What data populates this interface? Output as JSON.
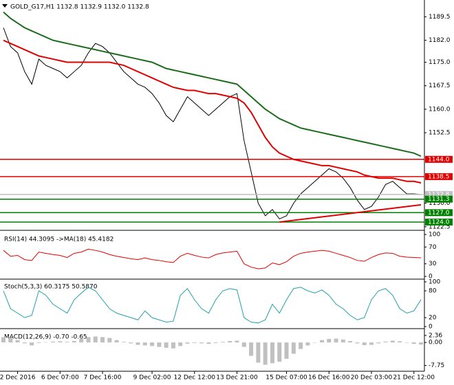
{
  "chart_data": [
    {
      "type": "line",
      "title": "GOLD_G17,H1  1132.8 1132.9 1132.0 1132.8",
      "categories": [
        null,
        null,
        "2 Dec 2016",
        null,
        null,
        null,
        null,
        null,
        "6 Dec 07:00",
        null,
        null,
        null,
        null,
        null,
        "7 Dec 16:00",
        null,
        null,
        null,
        null,
        null,
        null,
        "9 Dec 02:00",
        null,
        null,
        null,
        null,
        null,
        "12 Dec 12:00",
        null,
        null,
        null,
        null,
        null,
        "13 Dec 21:00",
        null,
        null,
        null,
        null,
        null,
        null,
        "15 Dec 07:00",
        null,
        null,
        null,
        null,
        null,
        "16 Dec 16:00",
        null,
        null,
        null,
        null,
        null,
        "20 Dec 03:00",
        null,
        null,
        null,
        null,
        null,
        "21 Dec 12:00",
        null
      ],
      "series": [
        {
          "color": "#000000",
          "values": [
            1186,
            1180,
            1178,
            1172,
            1168,
            1176,
            1174,
            1173,
            1172,
            1170,
            1172,
            1174,
            1178,
            1181,
            1180,
            1178,
            1175,
            1172,
            1170,
            1168,
            1167,
            1165,
            1162,
            1158,
            1156,
            1160,
            1164,
            1162,
            1160,
            1158,
            1160,
            1162,
            1164,
            1165,
            1150,
            1140,
            1130,
            1126,
            1128,
            1125,
            1126,
            1130,
            1133,
            1135,
            1137,
            1139,
            1141,
            1140,
            1138,
            1135,
            1131,
            1128,
            1129,
            1132,
            1136,
            1137,
            1135,
            1133,
            1133,
            1132.8
          ]
        },
        {
          "color": "#e00000",
          "values": [
            1182,
            1181,
            1180,
            1179,
            1178,
            1177,
            1176.5,
            1176,
            1175.5,
            1175,
            1175,
            1175,
            1175,
            1175,
            1175,
            1175,
            1174.5,
            1174,
            1173,
            1172,
            1171,
            1170,
            1169,
            1168,
            1167,
            1166.5,
            1166,
            1166,
            1165.5,
            1165,
            1165,
            1164.5,
            1164,
            1163.5,
            1162,
            1159,
            1155,
            1151,
            1148,
            1146,
            1145,
            1144,
            1143.5,
            1143,
            1142.5,
            1142,
            1142,
            1141.5,
            1141,
            1140.5,
            1140,
            1139,
            1138.5,
            1138,
            1138,
            1138,
            1137.5,
            1137,
            1137,
            1136.5
          ]
        },
        {
          "color": "#1a6b1a",
          "values": [
            1191,
            1189,
            1187.5,
            1186,
            1185,
            1184,
            1183,
            1182,
            1181.5,
            1181,
            1180.5,
            1180,
            1179.5,
            1179,
            1178.5,
            1178,
            1177.5,
            1177,
            1176.5,
            1176,
            1175.5,
            1175,
            1174,
            1173,
            1172.5,
            1172,
            1171.5,
            1171,
            1170.5,
            1170,
            1169.5,
            1169,
            1168.5,
            1168,
            1166,
            1164,
            1162,
            1160,
            1158.5,
            1157,
            1156,
            1155,
            1154,
            1153.5,
            1153,
            1152.5,
            1152,
            1151.5,
            1151,
            1150.5,
            1150,
            1149.5,
            1149,
            1148.5,
            1148,
            1147.5,
            1147,
            1146.5,
            1146,
            1145
          ]
        }
      ],
      "levels": [
        {
          "value": 1144,
          "label": "1144.0",
          "color": "#e00000"
        },
        {
          "value": 1138.5,
          "label": "1138.5",
          "color": "#e00000"
        },
        {
          "value": 1132.8,
          "label": "1132.8",
          "color": "#c0c0c0"
        },
        {
          "value": 1131.3,
          "label": "1131.3",
          "color": "#008000"
        },
        {
          "value": 1127,
          "label": "1127.0",
          "color": "#008000"
        },
        {
          "value": 1124,
          "label": "1124.0",
          "color": "#008000"
        }
      ],
      "trendline": {
        "x": [
          39,
          59
        ],
        "values": [
          1124,
          1129.5
        ],
        "color": "#e00000"
      },
      "ylim": [
        1121.8,
        1194.2
      ],
      "yticks": [
        {
          "value": 1189.5,
          "label": "1189.5"
        },
        {
          "value": 1182,
          "label": "1182.0"
        },
        {
          "value": 1175,
          "label": "1175.0"
        },
        {
          "value": 1167.5,
          "label": "1167.5"
        },
        {
          "value": 1160,
          "label": "1160.0"
        },
        {
          "value": 1152.5,
          "label": "1152.5"
        },
        {
          "value": 1130,
          "label": "1130.0"
        },
        {
          "value": 1122.5,
          "label": "1122.5"
        }
      ]
    },
    {
      "type": "line",
      "title": "RSI(14) 44.3095 ->MA(18) 45.4182",
      "color": "#e00000",
      "values": [
        62,
        48,
        50,
        40,
        38,
        58,
        55,
        52,
        50,
        45,
        55,
        58,
        65,
        62,
        58,
        52,
        48,
        45,
        42,
        40,
        44,
        40,
        38,
        35,
        33,
        48,
        55,
        50,
        46,
        44,
        52,
        56,
        58,
        60,
        30,
        22,
        18,
        20,
        32,
        28,
        35,
        48,
        55,
        58,
        60,
        62,
        60,
        55,
        50,
        45,
        38,
        36,
        45,
        52,
        56,
        55,
        48,
        46,
        45,
        44.3
      ],
      "ylim": [
        0,
        100
      ],
      "yticks": [
        100,
        70,
        30,
        0
      ]
    },
    {
      "type": "line",
      "title": "Stoch(5,3,3) 60.3175 50.5870",
      "color": "#20a0b0",
      "values": [
        80,
        40,
        30,
        20,
        25,
        80,
        70,
        50,
        40,
        30,
        60,
        75,
        88,
        80,
        60,
        40,
        30,
        25,
        20,
        15,
        35,
        20,
        15,
        10,
        12,
        70,
        85,
        60,
        40,
        30,
        60,
        80,
        85,
        82,
        20,
        10,
        8,
        15,
        50,
        30,
        60,
        85,
        88,
        80,
        75,
        82,
        70,
        50,
        40,
        25,
        15,
        20,
        60,
        80,
        85,
        70,
        40,
        30,
        35,
        60.3
      ],
      "ylim": [
        0,
        100
      ],
      "yticks": [
        100,
        80,
        20,
        0
      ]
    },
    {
      "type": "bar",
      "title": "MACD(12,26,9) -0.70 -0.65",
      "color": "#c0c0c0",
      "values": [
        1.8,
        1.5,
        0.8,
        -0.3,
        -1.0,
        -0.2,
        0.1,
        0.3,
        0.4,
        0.2,
        0.5,
        1.2,
        1.8,
        2.0,
        1.8,
        1.5,
        0.8,
        0.2,
        -0.3,
        -0.8,
        -1.0,
        -1.2,
        -1.5,
        -1.8,
        -2.0,
        -1.2,
        -0.4,
        -0.2,
        -0.3,
        -0.5,
        -0.2,
        0.2,
        0.5,
        0.6,
        -1.5,
        -4.5,
        -6.8,
        -7.5,
        -7.0,
        -6.5,
        -5.5,
        -3.8,
        -2.2,
        -1.0,
        0.0,
        0.8,
        1.2,
        1.3,
        1.0,
        0.5,
        -0.3,
        -0.9,
        -0.8,
        -0.3,
        0.3,
        0.6,
        0.4,
        0.0,
        -0.5,
        -0.7
      ],
      "ylim": [
        -9,
        3.5
      ],
      "yticks": [
        2.36,
        {
          "value": 0,
          "label": "0.00"
        },
        -7.75
      ]
    }
  ]
}
